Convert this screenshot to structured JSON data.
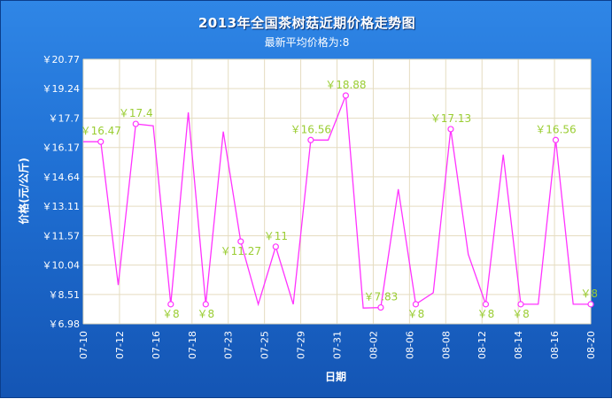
{
  "chart_data": {
    "type": "line",
    "title": "2013年全国茶树菇近期价格走势图",
    "subtitle": "最新平均价格为:8",
    "xlabel": "日期",
    "ylabel": "价格(元/公斤)",
    "currency_prefix": "￥",
    "ylim": [
      6.98,
      20.77
    ],
    "yticks": [
      "6.98",
      "8.51",
      "10.04",
      "11.57",
      "13.11",
      "14.64",
      "16.17",
      "17.7",
      "19.24",
      "20.77"
    ],
    "x_tick_labels": [
      "07-10",
      "07-12",
      "07-16",
      "07-18",
      "07-23",
      "07-25",
      "07-29",
      "07-31",
      "08-02",
      "08-06",
      "08-08",
      "08-12",
      "08-14",
      "08-16",
      "08-20"
    ],
    "values": [
      16.47,
      16.47,
      9.0,
      17.4,
      17.3,
      8.0,
      18.0,
      8.0,
      17.0,
      11.27,
      8.0,
      11.0,
      8.0,
      16.56,
      16.56,
      18.88,
      7.8,
      7.83,
      14.0,
      8.0,
      8.6,
      17.13,
      10.6,
      8.0,
      15.8,
      8.0,
      8.0,
      16.56,
      8.0,
      8.0
    ],
    "labeled_points": [
      {
        "index": 1,
        "label": "16.47",
        "pos": "above"
      },
      {
        "index": 3,
        "label": "17.4",
        "pos": "above"
      },
      {
        "index": 5,
        "label": "8",
        "pos": "below"
      },
      {
        "index": 7,
        "label": "8",
        "pos": "below"
      },
      {
        "index": 9,
        "label": "11.27",
        "pos": "below"
      },
      {
        "index": 11,
        "label": "11",
        "pos": "above"
      },
      {
        "index": 13,
        "label": "16.56",
        "pos": "above"
      },
      {
        "index": 15,
        "label": "18.88",
        "pos": "above"
      },
      {
        "index": 17,
        "label": "7.83",
        "pos": "above"
      },
      {
        "index": 19,
        "label": "8",
        "pos": "below"
      },
      {
        "index": 21,
        "label": "17.13",
        "pos": "above"
      },
      {
        "index": 23,
        "label": "8",
        "pos": "below"
      },
      {
        "index": 25,
        "label": "8",
        "pos": "below"
      },
      {
        "index": 27,
        "label": "16.56",
        "pos": "above"
      },
      {
        "index": 29,
        "label": "8",
        "pos": "above"
      }
    ],
    "grid": true,
    "colors": {
      "line": "#ff33ff",
      "label": "#9acd32",
      "grid": "#e5dcc0",
      "plot_bg": "#ffffff",
      "frame_bg": "#1f6fd3"
    }
  }
}
